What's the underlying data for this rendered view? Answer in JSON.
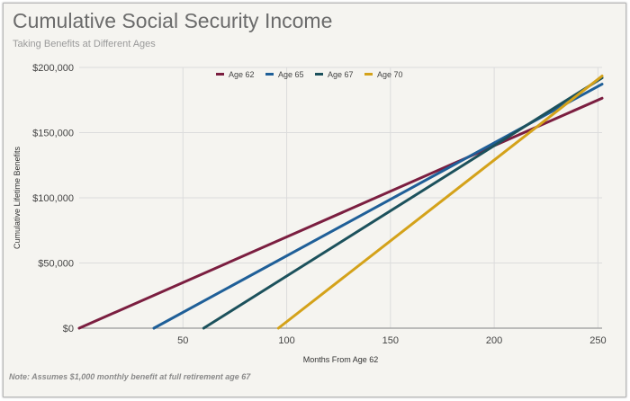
{
  "chart_data": {
    "type": "line",
    "title": "Cumulative Social Security Income",
    "subtitle": "Taking Benefits at Different Ages",
    "xlabel": "Months From Age 62",
    "ylabel": "Cumulative Lifetime Benefits",
    "xlim": [
      0,
      252
    ],
    "ylim": [
      0,
      200000
    ],
    "xticks": [
      50,
      100,
      150,
      200,
      250
    ],
    "yticks": [
      0,
      50000,
      100000,
      150000,
      200000
    ],
    "ytick_labels": [
      "$0",
      "$50,000",
      "$100,000",
      "$150,000",
      "$200,000"
    ],
    "grid": "vertical and horizontal",
    "legend_position": "top",
    "series": [
      {
        "name": "Age 62",
        "color": "#7b1e40",
        "x": [
          0,
          252
        ],
        "y": [
          0,
          176400
        ]
      },
      {
        "name": "Age 65",
        "color": "#1f5f98",
        "x": [
          36,
          252
        ],
        "y": [
          0,
          187200
        ]
      },
      {
        "name": "Age 67",
        "color": "#1c515c",
        "x": [
          60,
          252
        ],
        "y": [
          0,
          192000
        ]
      },
      {
        "name": "Age 70",
        "color": "#d4a21a",
        "x": [
          96,
          252
        ],
        "y": [
          0,
          193440
        ]
      }
    ],
    "note": "Note: Assumes $1,000 monthly benefit at full retirement age 67"
  }
}
